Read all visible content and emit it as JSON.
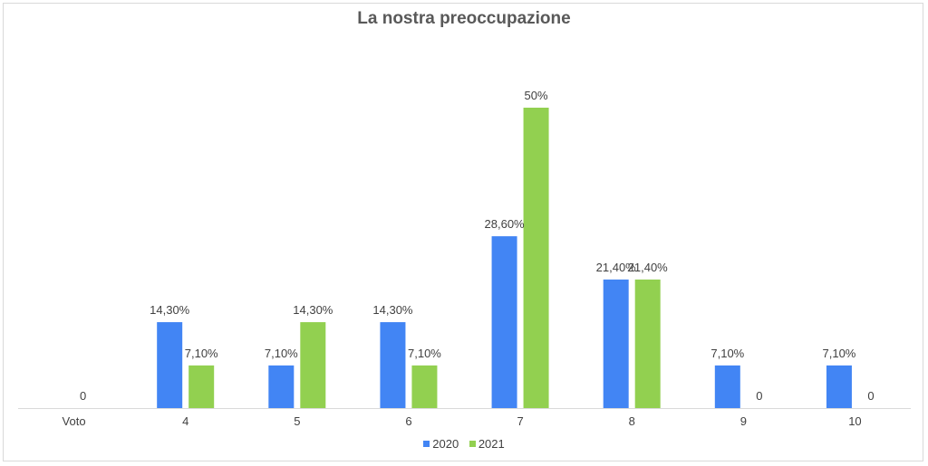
{
  "chart_data": {
    "type": "bar",
    "title": "La nostra preoccupazione",
    "category_axis_label": "Voto",
    "categories": [
      "4",
      "5",
      "6",
      "7",
      "8",
      "9",
      "10"
    ],
    "series": [
      {
        "name": "2020",
        "color": "#4285f4",
        "values": [
          14.3,
          7.1,
          14.3,
          28.6,
          21.4,
          7.1,
          7.1
        ],
        "labels": [
          "14,30%",
          "7,10%",
          "14,30%",
          "28,60%",
          "21,40%",
          "7,10%",
          "7,10%"
        ]
      },
      {
        "name": "2021",
        "color": "#92d050",
        "values": [
          7.1,
          14.3,
          7.1,
          50,
          21.4,
          0,
          0
        ],
        "labels": [
          "7,10%",
          "14,30%",
          "7,10%",
          "50%",
          "21,40%",
          "0",
          "0"
        ]
      }
    ],
    "voto_column_label": "0",
    "ylim": [
      0,
      60
    ],
    "grid": false,
    "legend_position": "bottom"
  }
}
